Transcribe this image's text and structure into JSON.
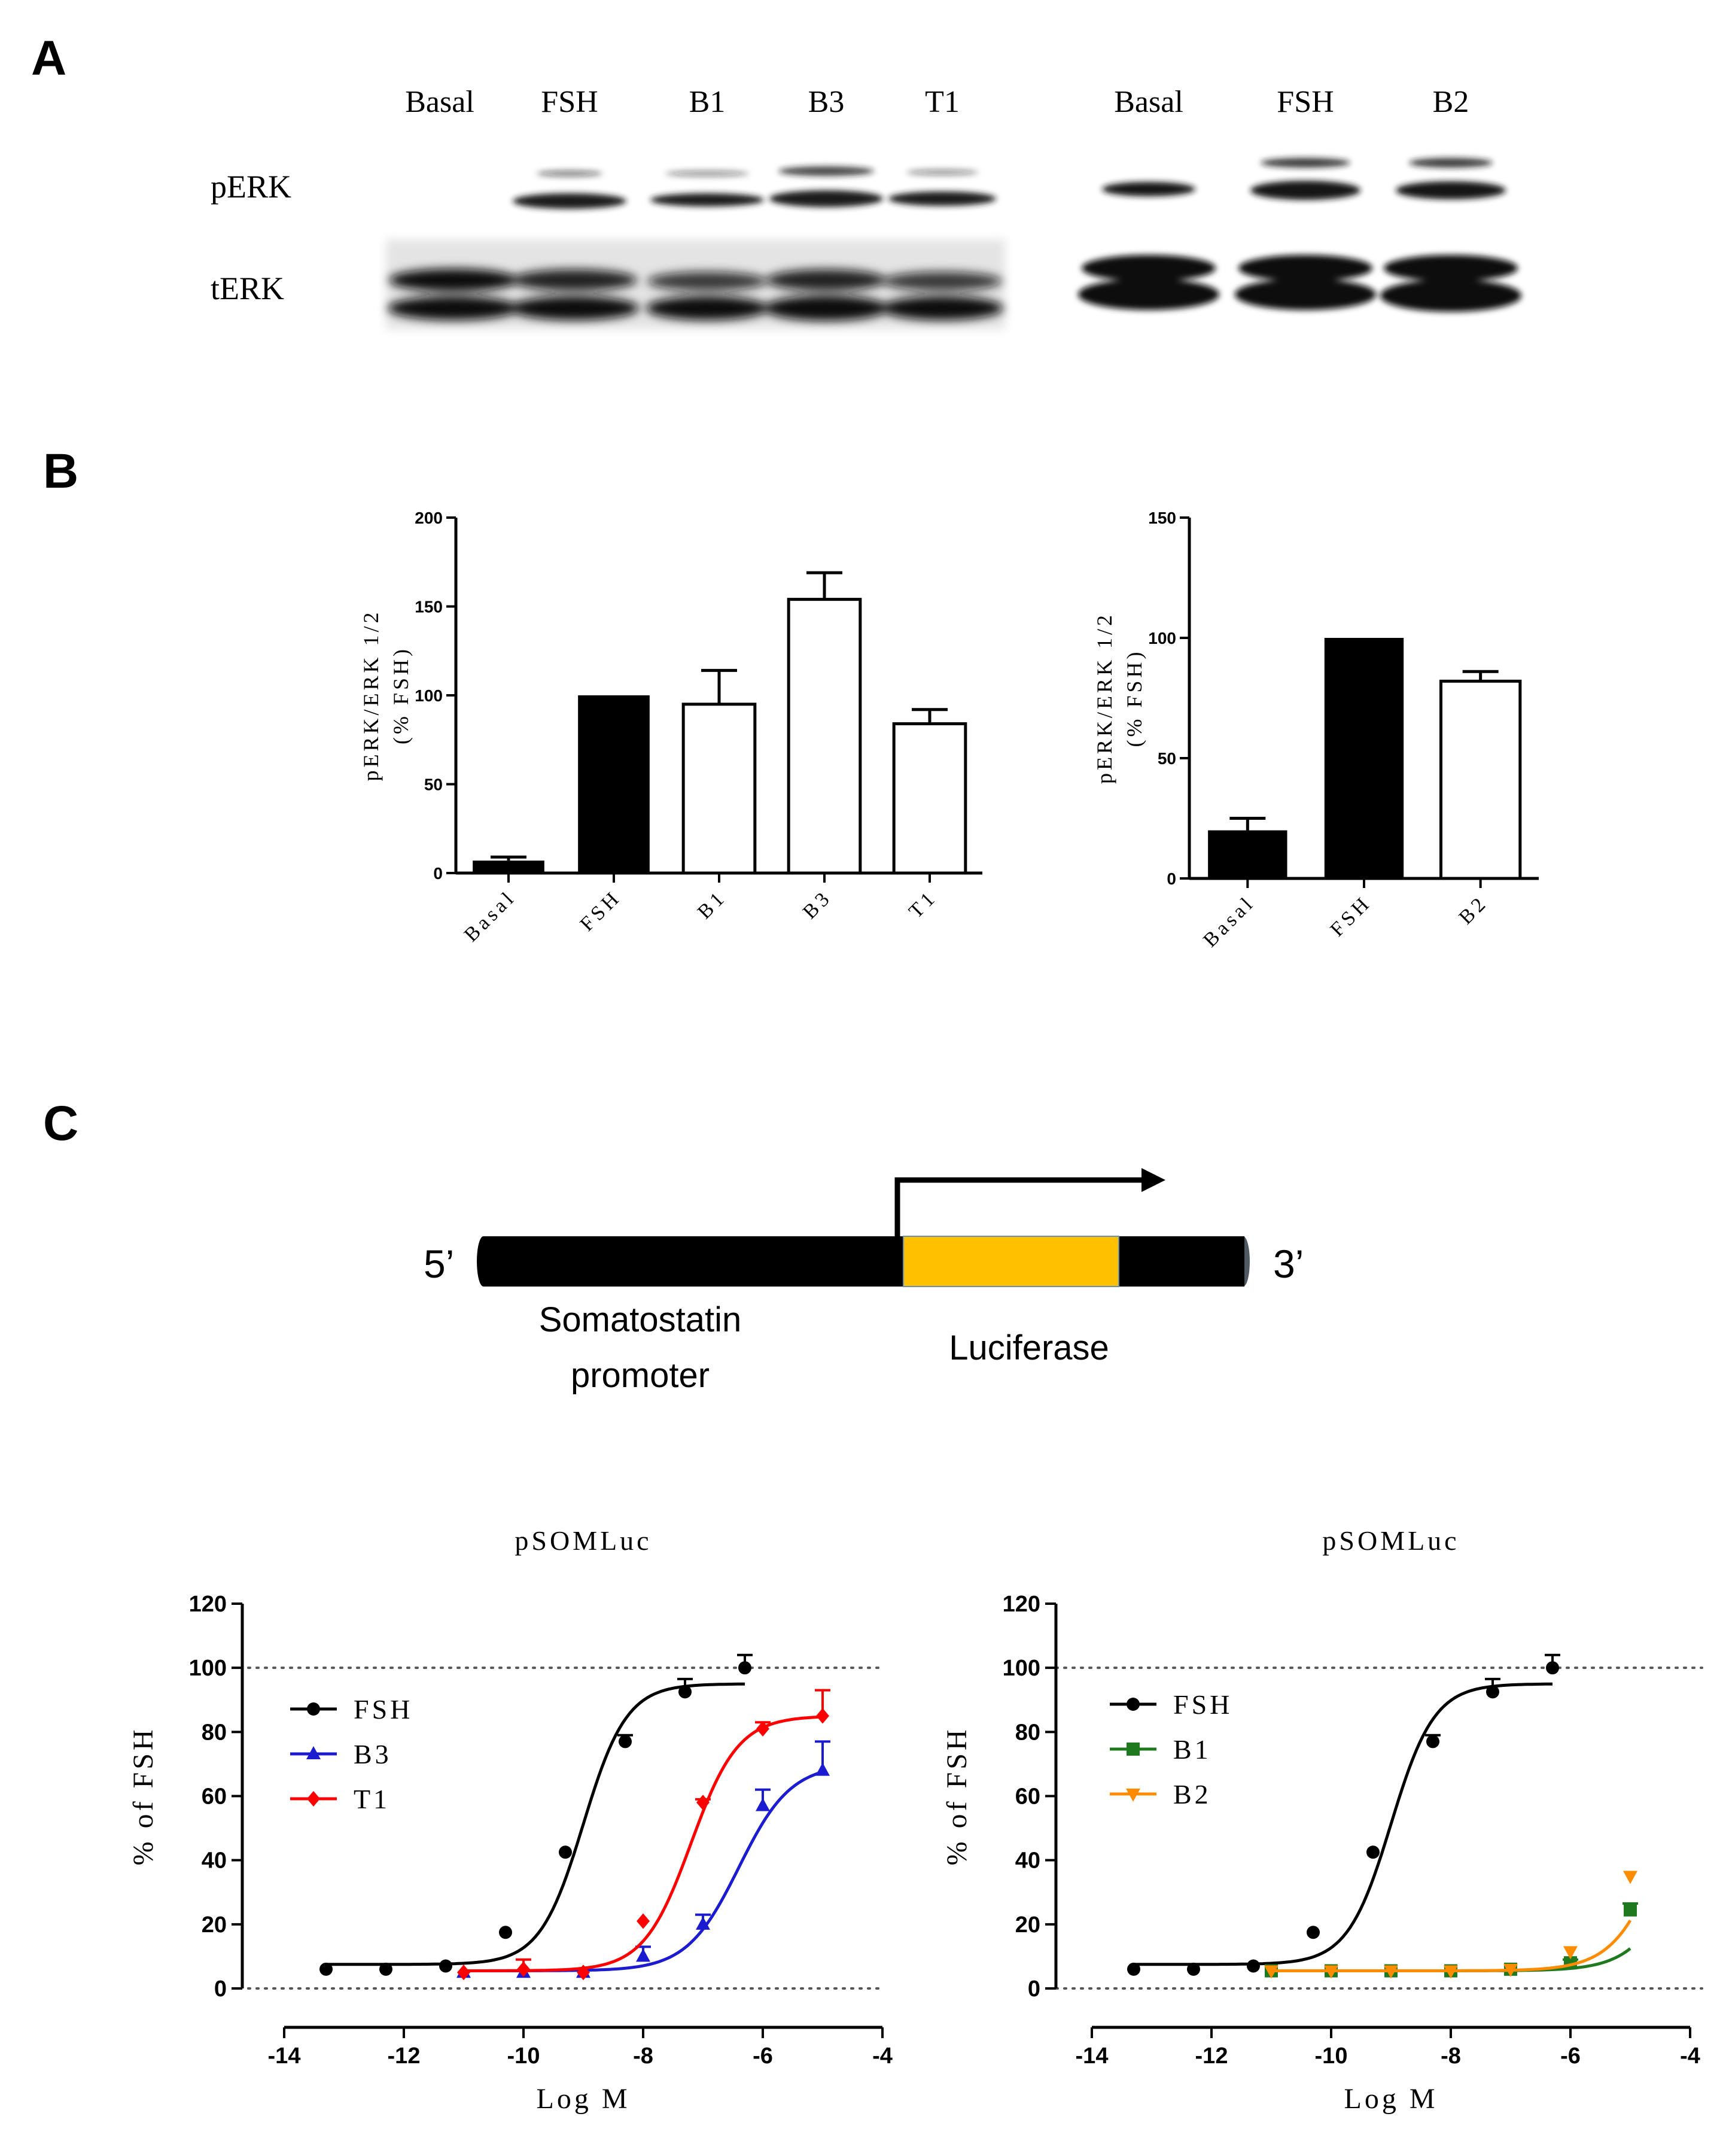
{
  "panels": {
    "a": "A",
    "b": "B",
    "c": "C"
  },
  "western_blot": {
    "left_lanes": [
      "Basal",
      "FSH",
      "B1",
      "B3",
      "T1"
    ],
    "right_lanes": [
      "Basal",
      "FSH",
      "B2"
    ],
    "row_labels": [
      "pERK",
      "tERK"
    ]
  },
  "diagram": {
    "five_prime": "5’",
    "three_prime": "3’",
    "promoter_line1": "Somatostatin",
    "promoter_line2": "promoter",
    "reporter": "Luciferase",
    "colors": {
      "dna": "#000000",
      "luciferase": "#FFC000"
    }
  },
  "chart_data": [
    {
      "id": "B-left",
      "type": "bar",
      "title": "",
      "ylabel_line1": "pERK/ERK 1/2",
      "ylabel_line2": "(% FSH)",
      "categories": [
        "Basal",
        "FSH",
        "B1",
        "B3",
        "T1"
      ],
      "values": [
        7,
        100,
        95,
        154,
        84
      ],
      "errors": [
        2,
        0,
        19,
        15,
        8
      ],
      "fills": [
        "black",
        "black",
        "white",
        "white",
        "white"
      ],
      "ylim": [
        0,
        200
      ],
      "yticks": [
        "0",
        "50",
        "100",
        "150",
        "200"
      ]
    },
    {
      "id": "B-right",
      "type": "bar",
      "title": "",
      "ylabel_line1": "pERK/ERK 1/2",
      "ylabel_line2": "(% FSH)",
      "categories": [
        "Basal",
        "FSH",
        "B2"
      ],
      "values": [
        20,
        100,
        82
      ],
      "errors": [
        5,
        0,
        4
      ],
      "fills": [
        "black",
        "black",
        "white"
      ],
      "ylim": [
        0,
        150
      ],
      "yticks": [
        "0",
        "50",
        "100",
        "150"
      ]
    },
    {
      "id": "C-left",
      "type": "line",
      "title": "pSOMLuc",
      "xlabel": "Log M",
      "ylabel": "% of FSH",
      "xlim": [
        -14,
        -4
      ],
      "ylim": [
        0,
        120
      ],
      "xticks": [
        "-14",
        "-12",
        "-10",
        "-8",
        "-6",
        "-4"
      ],
      "yticks": [
        "0",
        "20",
        "40",
        "60",
        "80",
        "100",
        "120"
      ],
      "ref_lines": [
        0,
        100
      ],
      "series": [
        {
          "name": "FSH",
          "color": "#000000",
          "marker": "circle",
          "x": [
            -13.3,
            -12.3,
            -11.3,
            -10.3,
            -9.3,
            -8.3,
            -7.3,
            -6.3
          ],
          "y": [
            6,
            6,
            7,
            17.5,
            42.5,
            77,
            92.5,
            100
          ],
          "err": [
            0,
            0,
            0,
            0,
            0,
            2,
            4,
            4
          ],
          "fit": {
            "bottom": 7.5,
            "top": 95,
            "logEC50": -9.0,
            "hill": 1.2,
            "from": -13.3,
            "to": -6.3
          }
        },
        {
          "name": "B3",
          "color": "#1B1BCF",
          "marker": "triangle-up",
          "x": [
            -11,
            -10,
            -9,
            -8,
            -7,
            -6,
            -5
          ],
          "y": [
            5,
            5,
            5,
            10,
            20,
            57,
            68
          ],
          "err": [
            0,
            0,
            0,
            3,
            3,
            5,
            9
          ],
          "fit": {
            "bottom": 5.5,
            "top": 70,
            "logEC50": -6.4,
            "hill": 1.0,
            "from": -11,
            "to": -5
          }
        },
        {
          "name": "T1",
          "color": "#FF0000",
          "marker": "diamond",
          "x": [
            -11,
            -10,
            -9,
            -8,
            -7,
            -6,
            -5
          ],
          "y": [
            5,
            6,
            5,
            21,
            58,
            81,
            85
          ],
          "err": [
            0,
            3,
            0,
            0,
            1,
            2,
            8
          ],
          "fit": {
            "bottom": 5.5,
            "top": 85,
            "logEC50": -7.2,
            "hill": 1.1,
            "from": -11,
            "to": -5
          }
        }
      ]
    },
    {
      "id": "C-right",
      "type": "line",
      "title": "pSOMLuc",
      "xlabel": "Log M",
      "ylabel": "% of FSH",
      "xlim": [
        -14,
        -4
      ],
      "ylim": [
        0,
        120
      ],
      "xticks": [
        "-14",
        "-12",
        "-10",
        "-8",
        "-6",
        "-4"
      ],
      "yticks": [
        "0",
        "20",
        "40",
        "60",
        "80",
        "100",
        "120"
      ],
      "ref_lines": [
        0,
        100
      ],
      "series": [
        {
          "name": "FSH",
          "color": "#000000",
          "marker": "circle",
          "x": [
            -13.3,
            -12.3,
            -11.3,
            -10.3,
            -9.3,
            -8.3,
            -7.3,
            -6.3
          ],
          "y": [
            6,
            6,
            7,
            17.5,
            42.5,
            77,
            92.5,
            100
          ],
          "err": [
            0,
            0,
            0,
            0,
            0,
            2,
            4,
            4
          ],
          "fit": {
            "bottom": 7.5,
            "top": 95,
            "logEC50": -9.0,
            "hill": 1.2,
            "from": -13.3,
            "to": -6.3
          }
        },
        {
          "name": "B1",
          "color": "#1F7A1F",
          "marker": "square",
          "x": [
            -11,
            -10,
            -9,
            -8,
            -7,
            -6,
            -5
          ],
          "y": [
            5.5,
            5.5,
            5.5,
            5.5,
            6,
            8,
            24.5
          ],
          "err": [
            0,
            0,
            0,
            0,
            0,
            1,
            2
          ],
          "fit": {
            "bottom": 5.5,
            "top": 100,
            "logEC50": -3.9,
            "hill": 1.0,
            "from": -11,
            "to": -5
          }
        },
        {
          "name": "B2",
          "color": "#FF8C00",
          "marker": "triangle-down",
          "x": [
            -11,
            -10,
            -9,
            -8,
            -7,
            -6,
            -5
          ],
          "y": [
            5.5,
            5.5,
            5.5,
            5.5,
            6,
            11.5,
            35
          ],
          "err": [
            0,
            0,
            0,
            0,
            0,
            0,
            0
          ],
          "fit": {
            "bottom": 5.5,
            "top": 100,
            "logEC50": -4.3,
            "hill": 1.0,
            "from": -11,
            "to": -5
          }
        }
      ]
    }
  ]
}
